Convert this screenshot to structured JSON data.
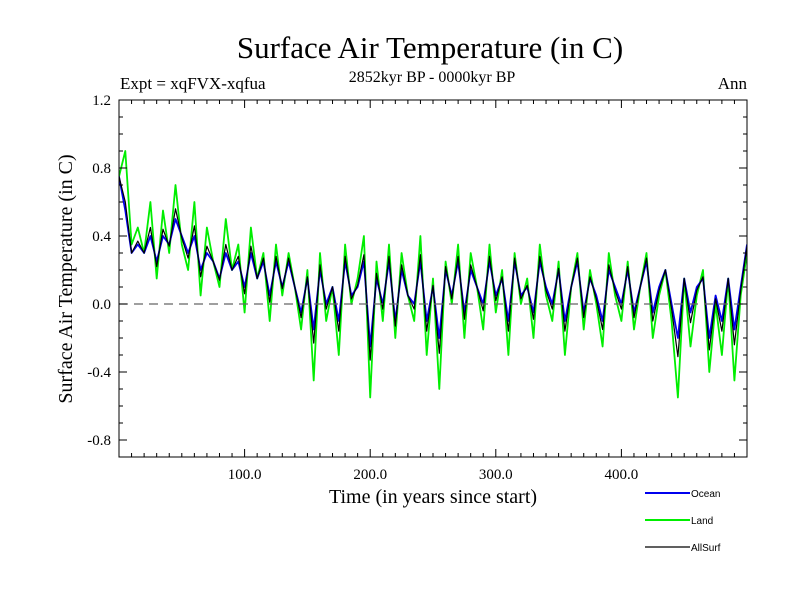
{
  "chart_data": {
    "type": "line",
    "title": "Surface Air Temperature (in C)",
    "subtitle_left": "Expt = xqFVX-xqfua",
    "subtitle_center": "2852kyr BP - 0000kyr BP",
    "subtitle_right": "Ann",
    "xlabel": "Time (in years since start)",
    "ylabel": "Surface Air Temperature (in C)",
    "xlim": [
      0,
      500
    ],
    "ylim": [
      -0.9,
      1.2
    ],
    "x_ticks": [
      {
        "value": 100,
        "label": "100.0"
      },
      {
        "value": 200,
        "label": "200.0"
      },
      {
        "value": 300,
        "label": "300.0"
      },
      {
        "value": 400,
        "label": "400.0"
      }
    ],
    "y_ticks": [
      {
        "value": 1.2,
        "label": "1.2"
      },
      {
        "value": 0.8,
        "label": "0.8"
      },
      {
        "value": 0.4,
        "label": "0.4"
      },
      {
        "value": 0.0,
        "label": "0.0"
      },
      {
        "value": -0.4,
        "label": "-0.4"
      },
      {
        "value": -0.8,
        "label": "-0.8"
      }
    ],
    "x_minor_step": 10,
    "y_minor_step": 0.1,
    "reference_line": 0.0,
    "series": [
      {
        "name": "Land",
        "color": "#00ee00",
        "x": [
          0,
          5,
          10,
          15,
          20,
          25,
          30,
          35,
          40,
          45,
          50,
          55,
          60,
          65,
          70,
          75,
          80,
          85,
          90,
          95,
          100,
          105,
          110,
          115,
          120,
          125,
          130,
          135,
          140,
          145,
          150,
          155,
          160,
          165,
          170,
          175,
          180,
          185,
          190,
          195,
          200,
          205,
          210,
          215,
          220,
          225,
          230,
          235,
          240,
          245,
          250,
          255,
          260,
          265,
          270,
          275,
          280,
          285,
          290,
          295,
          300,
          305,
          310,
          315,
          320,
          325,
          330,
          335,
          340,
          345,
          350,
          355,
          360,
          365,
          370,
          375,
          380,
          385,
          390,
          395,
          400,
          405,
          410,
          415,
          420,
          425,
          430,
          435,
          440,
          445,
          450,
          455,
          460,
          465,
          470,
          475,
          480,
          485,
          490,
          495,
          500
        ],
        "values": [
          0.75,
          0.9,
          0.35,
          0.45,
          0.3,
          0.6,
          0.15,
          0.55,
          0.3,
          0.7,
          0.35,
          0.2,
          0.6,
          0.05,
          0.45,
          0.25,
          0.1,
          0.5,
          0.2,
          0.35,
          -0.05,
          0.45,
          0.15,
          0.3,
          -0.1,
          0.35,
          0.05,
          0.3,
          0.1,
          -0.15,
          0.2,
          -0.45,
          0.3,
          -0.1,
          0.1,
          -0.3,
          0.35,
          0.0,
          0.15,
          0.4,
          -0.55,
          0.25,
          -0.1,
          0.35,
          -0.2,
          0.3,
          0.05,
          -0.1,
          0.4,
          -0.3,
          0.15,
          -0.5,
          0.25,
          0.0,
          0.35,
          -0.2,
          0.3,
          0.1,
          -0.15,
          0.35,
          -0.05,
          0.2,
          -0.3,
          0.3,
          0.0,
          0.15,
          -0.2,
          0.35,
          0.05,
          -0.1,
          0.25,
          -0.3,
          0.1,
          0.3,
          -0.15,
          0.2,
          0.0,
          -0.25,
          0.3,
          0.05,
          -0.1,
          0.25,
          -0.15,
          0.1,
          0.3,
          -0.2,
          0.05,
          0.2,
          -0.1,
          -0.55,
          0.15,
          -0.25,
          0.05,
          0.2,
          -0.4,
          0.0,
          -0.3,
          0.15,
          -0.45,
          0.05,
          0.3
        ]
      },
      {
        "name": "Ocean",
        "color": "#0000ee",
        "x": [
          0,
          5,
          10,
          15,
          20,
          25,
          30,
          35,
          40,
          45,
          50,
          55,
          60,
          65,
          70,
          75,
          80,
          85,
          90,
          95,
          100,
          105,
          110,
          115,
          120,
          125,
          130,
          135,
          140,
          145,
          150,
          155,
          160,
          165,
          170,
          175,
          180,
          185,
          190,
          195,
          200,
          205,
          210,
          215,
          220,
          225,
          230,
          235,
          240,
          245,
          250,
          255,
          260,
          265,
          270,
          275,
          280,
          285,
          290,
          295,
          300,
          305,
          310,
          315,
          320,
          325,
          330,
          335,
          340,
          345,
          350,
          355,
          360,
          365,
          370,
          375,
          380,
          385,
          390,
          395,
          400,
          405,
          410,
          415,
          420,
          425,
          430,
          435,
          440,
          445,
          450,
          455,
          460,
          465,
          470,
          475,
          480,
          485,
          490,
          495,
          500
        ],
        "values": [
          0.75,
          0.55,
          0.3,
          0.35,
          0.3,
          0.4,
          0.25,
          0.4,
          0.35,
          0.5,
          0.4,
          0.3,
          0.4,
          0.2,
          0.3,
          0.25,
          0.15,
          0.3,
          0.2,
          0.25,
          0.1,
          0.3,
          0.15,
          0.25,
          0.05,
          0.25,
          0.1,
          0.25,
          0.1,
          -0.05,
          0.15,
          -0.15,
          0.2,
          0.0,
          0.1,
          -0.1,
          0.25,
          0.05,
          0.1,
          0.25,
          -0.25,
          0.15,
          0.0,
          0.25,
          -0.1,
          0.2,
          0.05,
          0.0,
          0.25,
          -0.1,
          0.1,
          -0.2,
          0.2,
          0.05,
          0.25,
          -0.05,
          0.2,
          0.1,
          0.0,
          0.25,
          0.05,
          0.15,
          -0.1,
          0.25,
          0.05,
          0.1,
          -0.05,
          0.25,
          0.1,
          0.0,
          0.2,
          -0.1,
          0.1,
          0.25,
          -0.05,
          0.15,
          0.05,
          -0.1,
          0.2,
          0.1,
          0.0,
          0.2,
          -0.05,
          0.1,
          0.25,
          -0.05,
          0.1,
          0.2,
          0.0,
          -0.2,
          0.15,
          -0.05,
          0.1,
          0.15,
          -0.2,
          0.05,
          -0.1,
          0.15,
          -0.15,
          0.1,
          0.35
        ]
      },
      {
        "name": "AllSurf",
        "color": "#000000",
        "x": [
          0,
          5,
          10,
          15,
          20,
          25,
          30,
          35,
          40,
          45,
          50,
          55,
          60,
          65,
          70,
          75,
          80,
          85,
          90,
          95,
          100,
          105,
          110,
          115,
          120,
          125,
          130,
          135,
          140,
          145,
          150,
          155,
          160,
          165,
          170,
          175,
          180,
          185,
          190,
          195,
          200,
          205,
          210,
          215,
          220,
          225,
          230,
          235,
          240,
          245,
          250,
          255,
          260,
          265,
          270,
          275,
          280,
          285,
          290,
          295,
          300,
          305,
          310,
          315,
          320,
          325,
          330,
          335,
          340,
          345,
          350,
          355,
          360,
          365,
          370,
          375,
          380,
          385,
          390,
          395,
          400,
          405,
          410,
          415,
          420,
          425,
          430,
          435,
          440,
          445,
          450,
          455,
          460,
          465,
          470,
          475,
          480,
          485,
          490,
          495,
          500
        ],
        "values": [
          0.75,
          0.6,
          0.3,
          0.37,
          0.3,
          0.45,
          0.22,
          0.44,
          0.34,
          0.56,
          0.39,
          0.27,
          0.46,
          0.16,
          0.34,
          0.25,
          0.14,
          0.35,
          0.2,
          0.28,
          0.06,
          0.34,
          0.15,
          0.27,
          0.01,
          0.28,
          0.09,
          0.27,
          0.1,
          -0.08,
          0.16,
          -0.23,
          0.23,
          -0.03,
          0.1,
          -0.16,
          0.28,
          0.03,
          0.11,
          0.29,
          -0.33,
          0.18,
          -0.03,
          0.28,
          -0.13,
          0.23,
          0.05,
          -0.03,
          0.29,
          -0.16,
          0.11,
          -0.29,
          0.22,
          0.03,
          0.28,
          -0.09,
          0.23,
          0.1,
          -0.04,
          0.28,
          0.02,
          0.16,
          -0.16,
          0.27,
          0.03,
          0.11,
          -0.09,
          0.28,
          0.08,
          -0.03,
          0.21,
          -0.16,
          0.1,
          0.27,
          -0.08,
          0.16,
          0.03,
          -0.15,
          0.23,
          0.08,
          -0.03,
          0.22,
          -0.08,
          0.1,
          0.27,
          -0.1,
          0.08,
          0.2,
          -0.03,
          -0.31,
          0.15,
          -0.11,
          0.08,
          0.16,
          -0.27,
          0.03,
          -0.16,
          0.15,
          -0.24,
          0.08,
          0.34
        ]
      }
    ],
    "legend": [
      {
        "label": "Ocean",
        "color": "#0000ee"
      },
      {
        "label": "Land",
        "color": "#00ee00"
      },
      {
        "label": "AllSurf",
        "color": "#000000"
      }
    ]
  }
}
